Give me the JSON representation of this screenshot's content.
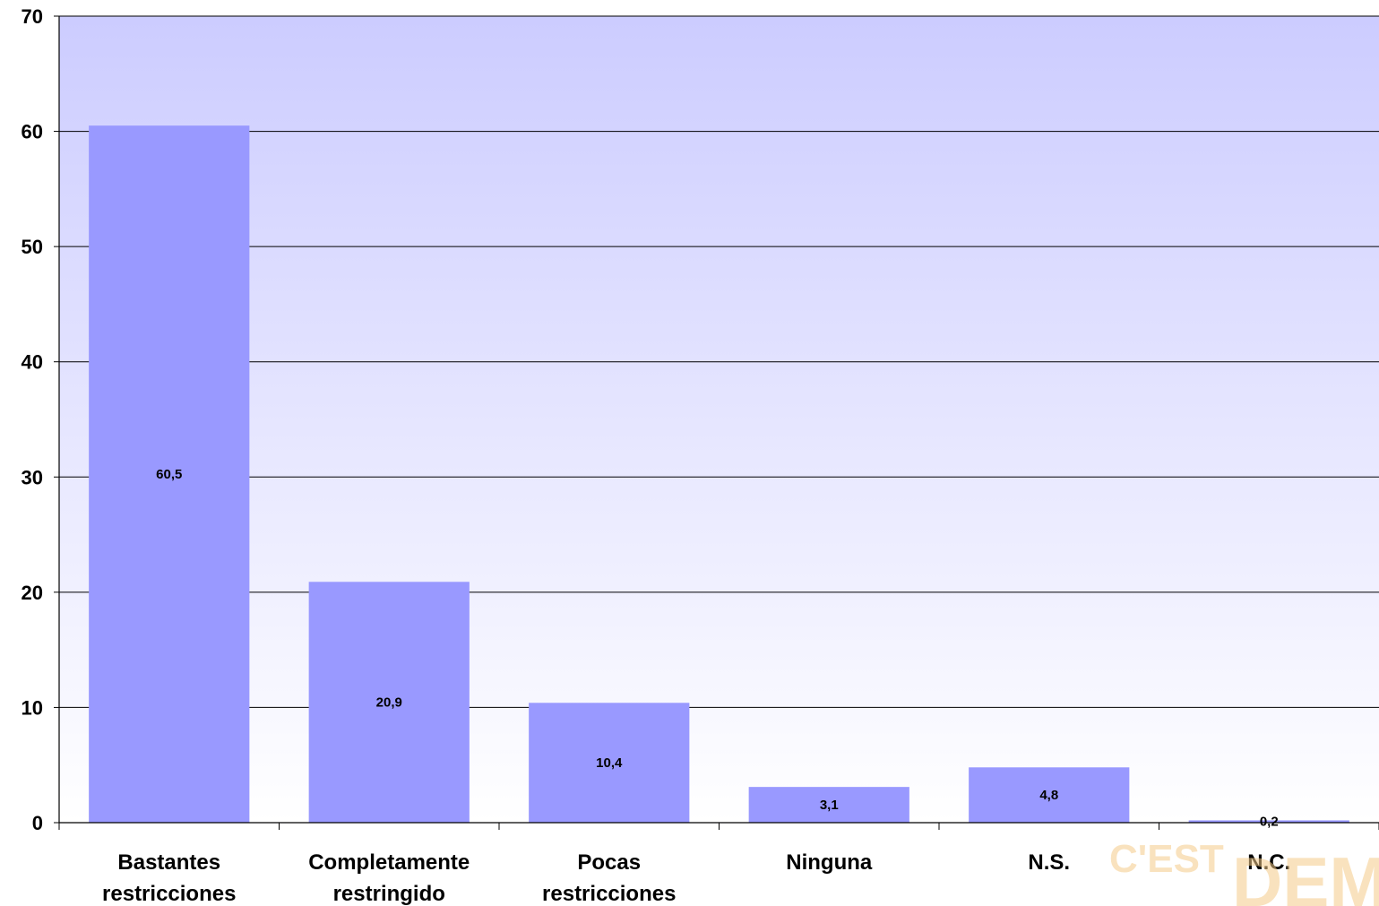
{
  "chart_data": {
    "type": "bar",
    "categories": [
      [
        "Bastantes",
        "restricciones"
      ],
      [
        "Completamente",
        "restringido"
      ],
      [
        "Pocas",
        "restricciones"
      ],
      [
        "Ninguna"
      ],
      [
        "N.S."
      ],
      [
        "N.C."
      ]
    ],
    "values": [
      60.5,
      20.9,
      10.4,
      3.1,
      4.8,
      0.2
    ],
    "value_labels": [
      "60,5",
      "20,9",
      "10,4",
      "3,1",
      "4,8",
      "0,2"
    ],
    "ylim": [
      0,
      70
    ],
    "yticks": [
      0,
      10,
      20,
      30,
      40,
      50,
      60,
      70
    ],
    "grid": true,
    "title": "",
    "xlabel": "",
    "ylabel": "",
    "bar_color": "#9999ff",
    "plot_bg_top": "#ccccff",
    "plot_bg_bottom": "#ffffff"
  },
  "watermark": {
    "line1": "C'EST",
    "line2": "DEM",
    "color": "#f5cc8a"
  }
}
